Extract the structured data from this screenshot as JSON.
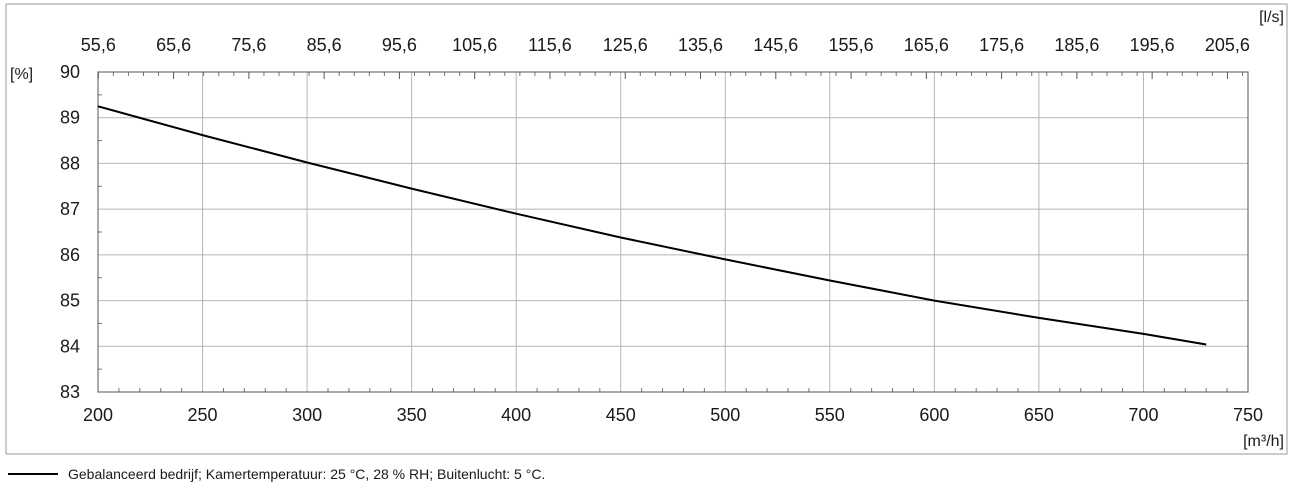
{
  "chart_data": {
    "type": "line",
    "title": "",
    "x_unit_label": "[m³/h]",
    "x2_unit_label": "[l/s]",
    "y_unit_label": "[%]",
    "xlim": [
      200,
      750
    ],
    "ylim": [
      83,
      90
    ],
    "x_ticks": [
      "200",
      "250",
      "300",
      "350",
      "400",
      "450",
      "500",
      "550",
      "600",
      "650",
      "700",
      "750"
    ],
    "x2_ticks": [
      "55,6",
      "65,6",
      "75,6",
      "85,6",
      "95,6",
      "105,6",
      "115,6",
      "125,6",
      "135,6",
      "145,6",
      "155,6",
      "165,6",
      "175,6",
      "185,6",
      "195,6",
      "205,6"
    ],
    "y_ticks": [
      "83",
      "84",
      "85",
      "86",
      "87",
      "88",
      "89",
      "90"
    ],
    "grid": true,
    "legend_position": "bottom-left",
    "line_color": "#000000",
    "series": [
      {
        "name": "Gebalanceerd bedrijf; Kamertemperatuur: 25 °C, 28 % RH; Buitenlucht: 5 °C.",
        "x": [
          200,
          250,
          300,
          350,
          400,
          450,
          500,
          550,
          600,
          650,
          700,
          730
        ],
        "y": [
          89.25,
          88.62,
          88.02,
          87.45,
          86.9,
          86.38,
          85.9,
          85.44,
          85.0,
          84.62,
          84.27,
          84.04
        ]
      }
    ]
  }
}
